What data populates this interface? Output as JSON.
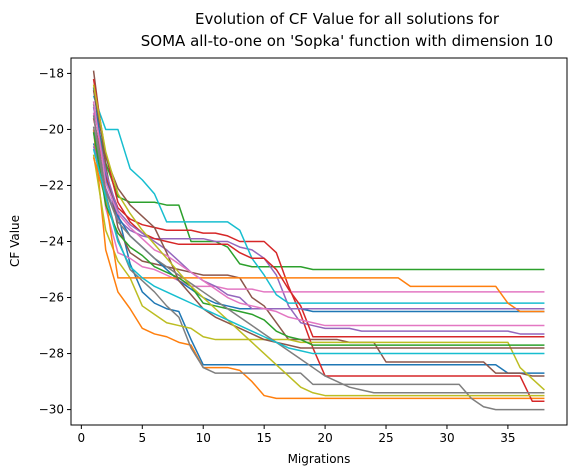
{
  "chart_data": {
    "type": "line",
    "title": "Evolution of CF Value for all solutions for",
    "subtitle": "SOMA all-to-one on 'Sopka' function with dimension 10",
    "xlabel": "Migrations",
    "ylabel": "CF Value",
    "xlim": [
      -0.85,
      39.85
    ],
    "ylim": [
      -30.55,
      -17.45
    ],
    "xticks": [
      0,
      5,
      10,
      15,
      20,
      25,
      30,
      35
    ],
    "yticks": [
      -30,
      -28,
      -26,
      -24,
      -22,
      -20,
      -18
    ],
    "grid": false,
    "legend": "none",
    "x": [
      1,
      2,
      3,
      4,
      5,
      6,
      7,
      8,
      9,
      10,
      11,
      12,
      13,
      14,
      15,
      16,
      17,
      18,
      19,
      20,
      21,
      22,
      23,
      24,
      25,
      26,
      27,
      28,
      29,
      30,
      31,
      32,
      33,
      34,
      35,
      36,
      37,
      38
    ],
    "colors": [
      "#1f77b4",
      "#ff7f0e",
      "#2ca02c",
      "#d62728",
      "#9467bd",
      "#8c564b",
      "#e377c2",
      "#7f7f7f",
      "#bcbd22",
      "#17becf"
    ],
    "series": [
      {
        "values": [
          -20.5,
          -21.6,
          -23.0,
          -24.8,
          -25.8,
          -26.2,
          -26.4,
          -26.5,
          -27.5,
          -28.4,
          -28.4,
          -28.4,
          -28.4,
          -28.4,
          -28.4,
          -28.4,
          -28.4,
          -28.4,
          -28.4,
          -28.4,
          -28.4,
          -28.4,
          -28.4,
          -28.4,
          -28.4,
          -28.4,
          -28.4,
          -28.4,
          -28.4,
          -28.4,
          -28.4,
          -28.4,
          -28.4,
          -28.4,
          -28.7,
          -28.7,
          -28.7,
          -28.7
        ]
      },
      {
        "values": [
          -20.0,
          -24.3,
          -25.8,
          -26.4,
          -27.1,
          -27.3,
          -27.4,
          -27.6,
          -27.7,
          -28.5,
          -28.5,
          -28.5,
          -28.6,
          -29.0,
          -29.5,
          -29.6,
          -29.6,
          -29.6,
          -29.6,
          -29.6,
          -29.6,
          -29.6,
          -29.6,
          -29.6,
          -29.6,
          -29.6,
          -29.6,
          -29.6,
          -29.6,
          -29.6,
          -29.6,
          -29.6,
          -29.6,
          -29.6,
          -29.6,
          -29.6,
          -29.6,
          -29.6
        ]
      },
      {
        "values": [
          -19.1,
          -21.2,
          -22.4,
          -22.6,
          -22.6,
          -22.6,
          -22.7,
          -22.7,
          -24.0,
          -24.0,
          -24.0,
          -24.2,
          -24.8,
          -24.9,
          -24.9,
          -24.9,
          -24.9,
          -24.9,
          -25.0,
          -25.0,
          -25.0,
          -25.0,
          -25.0,
          -25.0,
          -25.0,
          -25.0,
          -25.0,
          -25.0,
          -25.0,
          -25.0,
          -25.0,
          -25.0,
          -25.0,
          -25.0,
          -25.0,
          -25.0,
          -25.0,
          -25.0
        ]
      },
      {
        "values": [
          -19.6,
          -21.7,
          -22.8,
          -23.2,
          -23.4,
          -23.5,
          -23.6,
          -23.6,
          -23.6,
          -23.7,
          -23.7,
          -23.8,
          -24.0,
          -24.0,
          -24.0,
          -24.4,
          -25.6,
          -26.6,
          -27.8,
          -28.8,
          -28.8,
          -28.8,
          -28.8,
          -28.8,
          -28.8,
          -28.8,
          -28.8,
          -28.8,
          -28.8,
          -28.8,
          -28.8,
          -28.8,
          -28.8,
          -28.8,
          -28.8,
          -28.8,
          -29.7,
          -29.7
        ]
      },
      {
        "values": [
          -20.6,
          -22.1,
          -23.2,
          -23.6,
          -23.8,
          -23.9,
          -23.9,
          -23.9,
          -23.9,
          -23.9,
          -24.0,
          -24.0,
          -24.2,
          -24.3,
          -24.6,
          -25.2,
          -26.3,
          -26.9,
          -27.0,
          -27.1,
          -27.1,
          -27.1,
          -27.2,
          -27.2,
          -27.2,
          -27.2,
          -27.2,
          -27.2,
          -27.2,
          -27.2,
          -27.2,
          -27.2,
          -27.2,
          -27.2,
          -27.2,
          -27.3,
          -27.3,
          -27.3
        ]
      },
      {
        "values": [
          -17.9,
          -21.3,
          -23.5,
          -24.4,
          -24.7,
          -24.8,
          -24.9,
          -25.0,
          -25.1,
          -25.2,
          -25.2,
          -25.2,
          -25.3,
          -26.0,
          -26.3,
          -26.9,
          -27.5,
          -27.5,
          -27.5,
          -27.5,
          -27.5,
          -27.6,
          -27.6,
          -27.6,
          -28.3,
          -28.3,
          -28.3,
          -28.3,
          -28.3,
          -28.3,
          -28.3,
          -28.3,
          -28.3,
          -28.7,
          -28.7,
          -28.7,
          -28.8,
          -28.8
        ]
      },
      {
        "values": [
          -19.4,
          -22.8,
          -24.4,
          -24.6,
          -24.9,
          -25.0,
          -25.2,
          -25.4,
          -25.6,
          -25.6,
          -25.6,
          -25.7,
          -25.7,
          -25.7,
          -25.8,
          -25.8,
          -25.8,
          -25.8,
          -25.8,
          -25.8,
          -25.8,
          -25.8,
          -25.8,
          -25.8,
          -25.8,
          -25.8,
          -25.8,
          -25.8,
          -25.8,
          -25.8,
          -25.8,
          -25.8,
          -25.8,
          -25.8,
          -25.8,
          -25.8,
          -25.8,
          -25.8
        ]
      },
      {
        "values": [
          -19.9,
          -22.3,
          -23.9,
          -25.0,
          -25.4,
          -25.8,
          -26.3,
          -26.7,
          -27.8,
          -28.5,
          -28.7,
          -28.7,
          -28.7,
          -28.7,
          -28.7,
          -28.7,
          -28.7,
          -28.7,
          -29.1,
          -29.1,
          -29.1,
          -29.1,
          -29.1,
          -29.1,
          -29.1,
          -29.1,
          -29.1,
          -29.1,
          -29.1,
          -29.1,
          -29.1,
          -29.6,
          -29.9,
          -30.0,
          -30.0,
          -30.0,
          -30.0,
          -30.0
        ]
      },
      {
        "values": [
          -20.9,
          -23.6,
          -24.7,
          -25.3,
          -26.3,
          -26.6,
          -26.9,
          -27.0,
          -27.1,
          -27.4,
          -27.5,
          -27.5,
          -27.5,
          -27.5,
          -27.5,
          -27.5,
          -27.5,
          -27.6,
          -27.6,
          -27.6,
          -27.6,
          -27.6,
          -27.6,
          -27.6,
          -27.6,
          -27.6,
          -27.6,
          -27.6,
          -27.6,
          -27.6,
          -27.6,
          -27.6,
          -27.6,
          -27.6,
          -27.6,
          -28.5,
          -28.9,
          -29.3
        ]
      },
      {
        "values": [
          -18.8,
          -20.0,
          -20.0,
          -21.4,
          -21.8,
          -22.3,
          -23.3,
          -23.3,
          -23.3,
          -23.3,
          -23.3,
          -23.3,
          -23.6,
          -24.6,
          -25.2,
          -25.9,
          -26.2,
          -26.2,
          -26.2,
          -26.2,
          -26.2,
          -26.2,
          -26.2,
          -26.2,
          -26.2,
          -26.2,
          -26.2,
          -26.2,
          -26.2,
          -26.2,
          -26.2,
          -26.2,
          -26.2,
          -26.2,
          -26.2,
          -26.2,
          -26.2,
          -26.2
        ]
      },
      {
        "values": [
          -18.5,
          -21.8,
          -23.1,
          -23.8,
          -24.2,
          -24.6,
          -25.0,
          -25.4,
          -25.7,
          -26.0,
          -26.2,
          -26.3,
          -26.4,
          -26.4,
          -26.4,
          -26.4,
          -26.4,
          -26.4,
          -26.5,
          -26.5,
          -26.5,
          -26.5,
          -26.5,
          -26.5,
          -26.5,
          -26.5,
          -26.5,
          -26.5,
          -26.5,
          -26.5,
          -26.5,
          -26.5,
          -26.5,
          -26.5,
          -26.5,
          -26.5,
          -26.5,
          -26.5
        ]
      },
      {
        "values": [
          -21.0,
          -22.5,
          -25.3,
          -25.3,
          -25.3,
          -25.3,
          -25.3,
          -25.3,
          -25.3,
          -25.3,
          -25.3,
          -25.3,
          -25.3,
          -25.3,
          -25.3,
          -25.3,
          -25.3,
          -25.3,
          -25.3,
          -25.3,
          -25.3,
          -25.3,
          -25.3,
          -25.3,
          -25.3,
          -25.3,
          -25.6,
          -25.6,
          -25.6,
          -25.6,
          -25.6,
          -25.6,
          -25.6,
          -25.6,
          -26.2,
          -26.5,
          -26.5,
          -26.5
        ]
      },
      {
        "values": [
          -20.1,
          -22.7,
          -23.7,
          -24.2,
          -24.5,
          -24.9,
          -25.1,
          -25.3,
          -25.6,
          -26.2,
          -26.3,
          -26.4,
          -26.5,
          -26.6,
          -26.8,
          -27.2,
          -27.4,
          -27.5,
          -27.7,
          -27.7,
          -27.7,
          -27.7,
          -27.7,
          -27.7,
          -27.7,
          -27.7,
          -27.7,
          -27.7,
          -27.7,
          -27.7,
          -27.7,
          -27.7,
          -27.7,
          -27.7,
          -27.7,
          -27.7,
          -27.7,
          -27.7
        ]
      },
      {
        "values": [
          -18.2,
          -20.9,
          -22.6,
          -23.3,
          -23.7,
          -23.9,
          -24.0,
          -24.1,
          -24.1,
          -24.1,
          -24.1,
          -24.1,
          -24.4,
          -24.6,
          -24.6,
          -25.0,
          -25.7,
          -26.3,
          -27.4,
          -27.4,
          -27.4,
          -27.4,
          -27.4,
          -27.4,
          -27.4,
          -27.4,
          -27.4,
          -27.4,
          -27.4,
          -27.4,
          -27.4,
          -27.4,
          -27.4,
          -27.4,
          -27.4,
          -27.4,
          -27.4,
          -27.4
        ]
      },
      {
        "values": [
          -19.2,
          -21.5,
          -22.9,
          -23.4,
          -23.7,
          -24.0,
          -24.3,
          -24.7,
          -25.1,
          -25.4,
          -25.6,
          -25.9,
          -26.0,
          -26.4,
          -26.4,
          -26.4,
          -26.4,
          -26.4,
          -26.4,
          -26.4,
          -26.4,
          -26.4,
          -26.4,
          -26.4,
          -26.4,
          -26.4,
          -26.4,
          -26.4,
          -26.4,
          -26.4,
          -26.4,
          -26.4,
          -26.4,
          -26.4,
          -26.4,
          -26.4,
          -26.4,
          -26.4
        ]
      },
      {
        "values": [
          -18.6,
          -21.0,
          -22.1,
          -22.7,
          -23.1,
          -23.5,
          -24.4,
          -25.4,
          -25.9,
          -26.4,
          -26.7,
          -26.9,
          -27.1,
          -27.3,
          -27.5,
          -27.6,
          -27.7,
          -27.8,
          -27.8,
          -27.8,
          -27.8,
          -27.8,
          -27.8,
          -27.8,
          -27.8,
          -27.8,
          -27.8,
          -27.8,
          -27.8,
          -27.8,
          -27.8,
          -27.8,
          -27.8,
          -27.8,
          -27.8,
          -27.8,
          -27.8,
          -27.8
        ]
      },
      {
        "values": [
          -19.0,
          -21.9,
          -23.0,
          -23.5,
          -23.9,
          -24.3,
          -24.5,
          -24.8,
          -25.1,
          -25.4,
          -25.7,
          -26.0,
          -26.2,
          -26.3,
          -26.4,
          -26.5,
          -26.7,
          -26.8,
          -26.9,
          -27.0,
          -27.0,
          -27.0,
          -27.0,
          -27.0,
          -27.0,
          -27.0,
          -27.0,
          -27.0,
          -27.0,
          -27.0,
          -27.0,
          -27.0,
          -27.0,
          -27.0,
          -27.0,
          -27.0,
          -27.0,
          -27.0
        ]
      },
      {
        "values": [
          -19.5,
          -22.2,
          -23.3,
          -23.8,
          -24.2,
          -24.6,
          -24.9,
          -25.2,
          -25.5,
          -25.8,
          -26.1,
          -26.4,
          -26.7,
          -27.0,
          -27.3,
          -27.6,
          -27.9,
          -28.2,
          -28.5,
          -28.8,
          -29.0,
          -29.2,
          -29.3,
          -29.4,
          -29.4,
          -29.4,
          -29.4,
          -29.4,
          -29.4,
          -29.4,
          -29.4,
          -29.4,
          -29.4,
          -29.4,
          -29.4,
          -29.4,
          -29.4,
          -29.4
        ]
      },
      {
        "values": [
          -18.4,
          -20.8,
          -22.3,
          -23.0,
          -23.6,
          -24.1,
          -24.6,
          -25.1,
          -25.6,
          -26.0,
          -26.4,
          -26.8,
          -27.2,
          -27.6,
          -28.0,
          -28.4,
          -28.8,
          -29.2,
          -29.4,
          -29.5,
          -29.5,
          -29.5,
          -29.5,
          -29.5,
          -29.5,
          -29.5,
          -29.5,
          -29.5,
          -29.5,
          -29.5,
          -29.5,
          -29.5,
          -29.5,
          -29.5,
          -29.5,
          -29.5,
          -29.5,
          -29.5
        ]
      },
      {
        "values": [
          -20.7,
          -22.4,
          -24.0,
          -24.9,
          -25.3,
          -25.6,
          -25.8,
          -26.0,
          -26.2,
          -26.4,
          -26.6,
          -26.8,
          -27.0,
          -27.2,
          -27.4,
          -27.6,
          -27.8,
          -27.9,
          -28.0,
          -28.0,
          -28.0,
          -28.0,
          -28.0,
          -28.0,
          -28.0,
          -28.0,
          -28.0,
          -28.0,
          -28.0,
          -28.0,
          -28.0,
          -28.0,
          -28.0,
          -28.0,
          -28.0,
          -28.0,
          -28.0,
          -28.0
        ]
      }
    ]
  }
}
